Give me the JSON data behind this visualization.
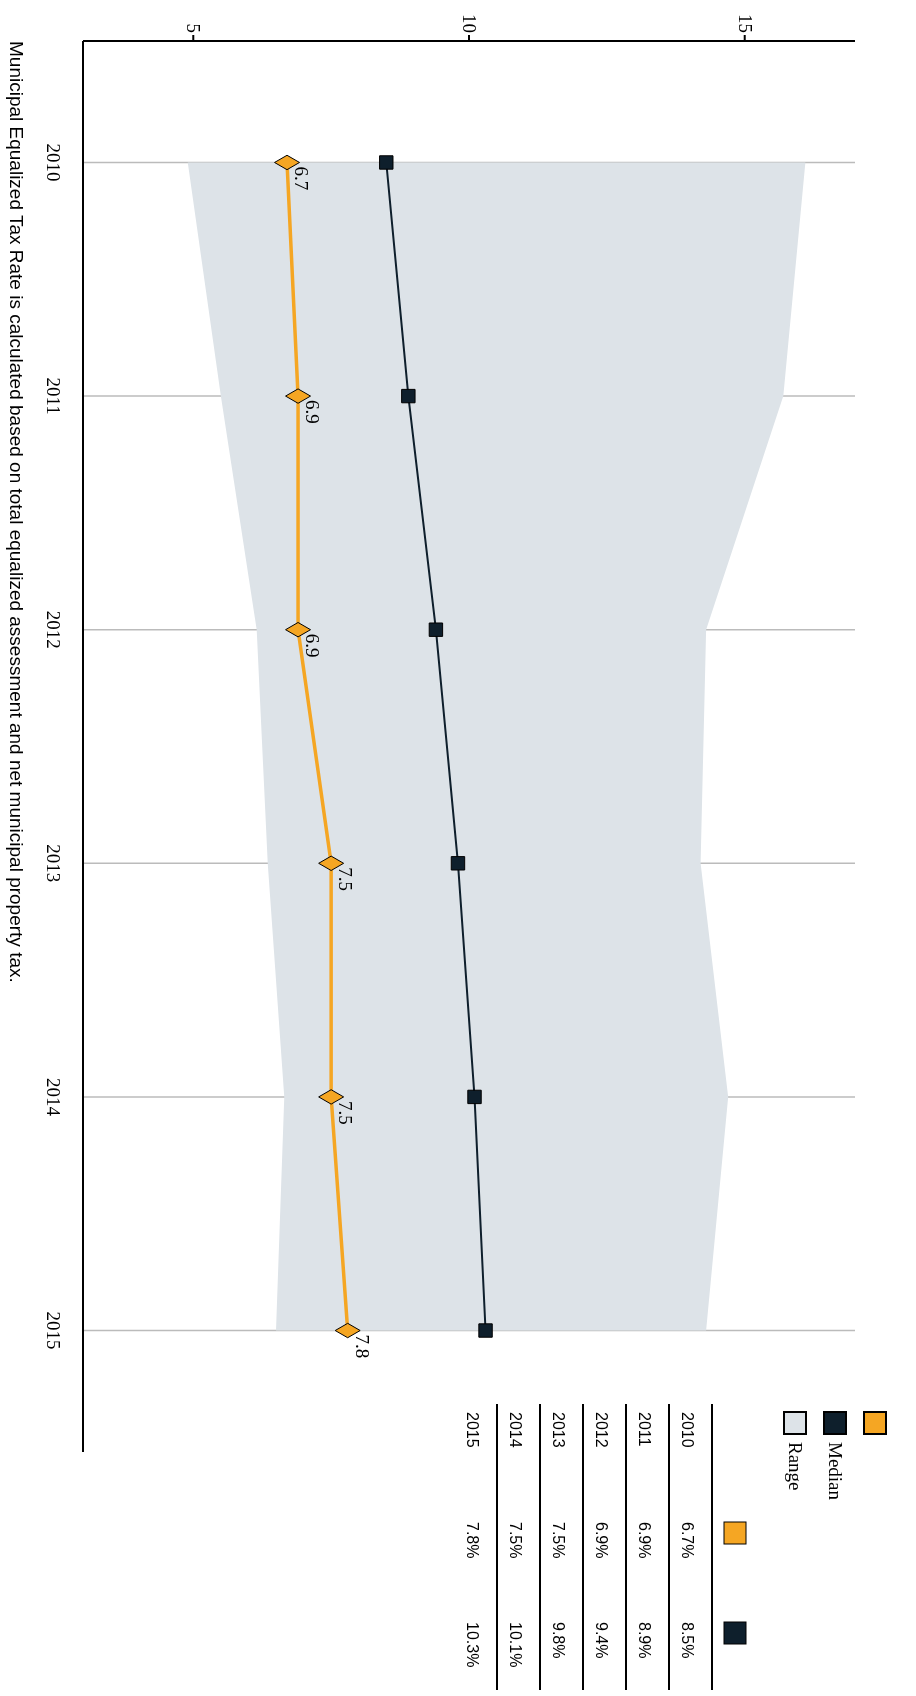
{
  "chart_data": {
    "type": "line",
    "categories": [
      "2010",
      "2011",
      "2012",
      "2013",
      "2014",
      "2015"
    ],
    "orientation": "horizontal",
    "xlim": [
      3,
      17
    ],
    "xticks": [
      5,
      10,
      15
    ],
    "grid": "y",
    "legend": "bottom right",
    "series": [
      {
        "color": "#f5a623",
        "marker": "diamond",
        "values": [
          6.7,
          6.9,
          6.9,
          7.5,
          7.5,
          7.8
        ],
        "value_labels": [
          "6.7",
          "6.9",
          "6.9",
          "7.5",
          "7.5",
          "7.8"
        ]
      },
      {
        "name": "Median",
        "color": "#0e1f2c",
        "marker": "square",
        "values": [
          8.5,
          8.9,
          9.4,
          9.8,
          10.1,
          10.3
        ]
      },
      {
        "name": "Range",
        "color": "#dde3e8",
        "type": "area",
        "values": [
          null,
          null,
          null,
          null,
          null,
          null
        ],
        "lower": [
          4.9,
          5.5,
          6.15,
          6.35,
          6.65,
          6.5
        ],
        "upper": [
          16.1,
          15.7,
          14.3,
          14.2,
          14.7,
          14.3
        ]
      }
    ],
    "annotations": [
      "Municipal Equalized Tax Rate is calculated based on total equalized assessment and net municipal property tax.",
      "6.7%",
      "8.5%",
      "6.9%",
      "8.9%",
      "6.9%",
      "9.4%",
      "7.5%",
      "9.8%",
      "7.5%",
      "10.1%",
      "7.8%",
      "10.3%"
    ]
  }
}
